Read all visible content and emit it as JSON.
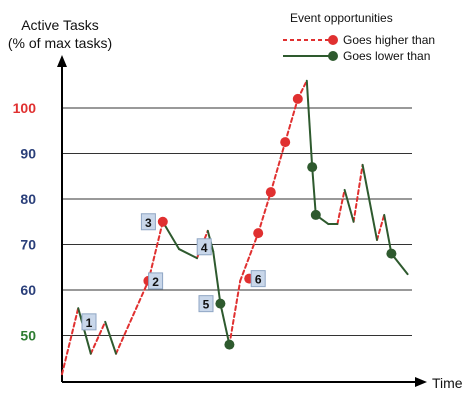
{
  "chart_data": {
    "type": "line",
    "ylabel_line1": "Active Tasks",
    "ylabel_line2": "(% of max tasks)",
    "xlabel": "Time",
    "ylim": [
      40,
      110
    ],
    "grid": true,
    "y_ticks": [
      {
        "label": "100",
        "value": 100,
        "color": "#e03030"
      },
      {
        "label": "90",
        "value": 90,
        "color": "#2a3f7a"
      },
      {
        "label": "80",
        "value": 80,
        "color": "#2a3f7a"
      },
      {
        "label": "70",
        "value": 70,
        "color": "#2a3f7a"
      },
      {
        "label": "60",
        "value": 60,
        "color": "#2a3f7a"
      },
      {
        "label": "50",
        "value": 50,
        "color": "#2e7d32"
      }
    ],
    "legend": {
      "title": "Event opportunities",
      "placement": "top-right",
      "items": [
        {
          "label": "Goes higher than",
          "style": "dashed",
          "color": "#e03030"
        },
        {
          "label": "Goes lower than",
          "style": "solid",
          "color": "#2e5a2e"
        }
      ]
    },
    "series": [
      {
        "kind": "higher",
        "color": "#e03030",
        "segments": [
          [
            [
              0,
              41.5
            ],
            [
              9,
              56
            ]
          ],
          [
            [
              16,
              46
            ],
            [
              24,
              53
            ]
          ],
          [
            [
              30,
              46
            ],
            [
              48,
              62
            ]
          ],
          [
            [
              48,
              62
            ],
            [
              56,
              75
            ]
          ],
          [
            [
              75,
              67
            ],
            [
              81,
              73
            ]
          ],
          [
            [
              93,
              48
            ],
            [
              99,
              62
            ]
          ],
          [
            [
              99,
              62
            ],
            [
              109,
              72.5
            ]
          ],
          [
            [
              109,
              72.5
            ],
            [
              116,
              81.5
            ]
          ],
          [
            [
              116,
              81.5
            ],
            [
              124,
              92.5
            ]
          ],
          [
            [
              124,
              92.5
            ],
            [
              131,
              102
            ]
          ],
          [
            [
              131,
              102
            ],
            [
              136,
              106
            ]
          ],
          [
            [
              153,
              74.5
            ],
            [
              157,
              82
            ]
          ],
          [
            [
              162,
              75
            ],
            [
              167,
              87.5
            ]
          ],
          [
            [
              175,
              71
            ],
            [
              179,
              76.5
            ]
          ]
        ]
      },
      {
        "kind": "lower",
        "color": "#2e5a2e",
        "segments": [
          [
            [
              9,
              56
            ],
            [
              16,
              46
            ]
          ],
          [
            [
              24,
              53
            ],
            [
              30,
              46
            ]
          ],
          [
            [
              56,
              75
            ],
            [
              65,
              69
            ]
          ],
          [
            [
              65,
              69
            ],
            [
              75,
              67
            ]
          ],
          [
            [
              81,
              73
            ],
            [
              84,
              68.5
            ]
          ],
          [
            [
              84,
              68.5
            ],
            [
              88,
              57
            ]
          ],
          [
            [
              88,
              57
            ],
            [
              93,
              48
            ]
          ],
          [
            [
              136,
              106
            ],
            [
              139,
              87
            ]
          ],
          [
            [
              139,
              87
            ],
            [
              141,
              76.5
            ]
          ],
          [
            [
              141,
              76.5
            ],
            [
              148,
              74.5
            ]
          ],
          [
            [
              148,
              74.5
            ],
            [
              153,
              74.5
            ]
          ],
          [
            [
              157,
              82
            ],
            [
              162,
              75
            ]
          ],
          [
            [
              167,
              87.5
            ],
            [
              175,
              71
            ]
          ],
          [
            [
              179,
              76.5
            ],
            [
              183,
              68
            ]
          ],
          [
            [
              183,
              68
            ],
            [
              192,
              63.5
            ]
          ]
        ]
      }
    ],
    "red_markers": [
      [
        48,
        62
      ],
      [
        56,
        75
      ],
      [
        109,
        72.5
      ],
      [
        116,
        81.5
      ],
      [
        124,
        92.5
      ],
      [
        131,
        102
      ],
      [
        104,
        62.5
      ]
    ],
    "green_markers": [
      [
        88,
        57
      ],
      [
        93,
        48
      ],
      [
        139,
        87
      ],
      [
        141,
        76.5
      ],
      [
        183,
        68
      ]
    ],
    "annotations": [
      {
        "label": "1",
        "x": 15,
        "y": 53
      },
      {
        "label": "2",
        "x": 52,
        "y": 62
      },
      {
        "label": "3",
        "x": 48,
        "y": 75
      },
      {
        "label": "4",
        "x": 79,
        "y": 69.5
      },
      {
        "label": "5",
        "x": 80,
        "y": 57
      },
      {
        "label": "6",
        "x": 109,
        "y": 62.5
      }
    ]
  }
}
